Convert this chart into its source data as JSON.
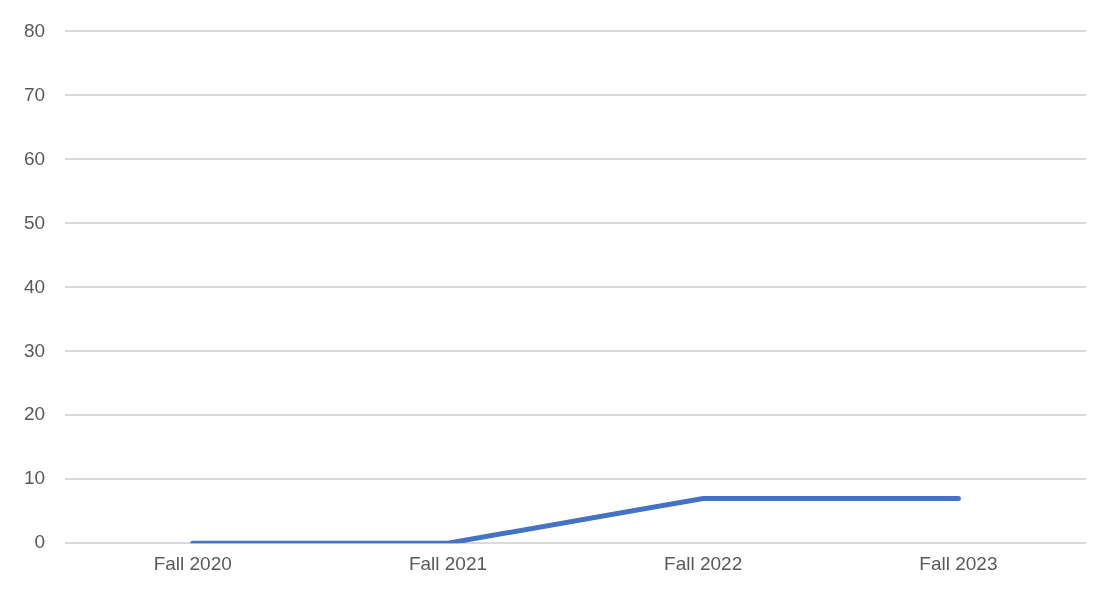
{
  "chart_data": {
    "type": "line",
    "categories": [
      "Fall 2020",
      "Fall 2021",
      "Fall 2022",
      "Fall 2023"
    ],
    "series": [
      {
        "color": "#4472c4",
        "values": [
          0,
          0,
          7,
          7
        ]
      }
    ],
    "ylim": [
      0,
      80
    ],
    "yticks": [
      0,
      10,
      20,
      30,
      40,
      50,
      60,
      70,
      80
    ],
    "grid": "y",
    "legend": false,
    "marker": "none",
    "line_style": "solid"
  }
}
